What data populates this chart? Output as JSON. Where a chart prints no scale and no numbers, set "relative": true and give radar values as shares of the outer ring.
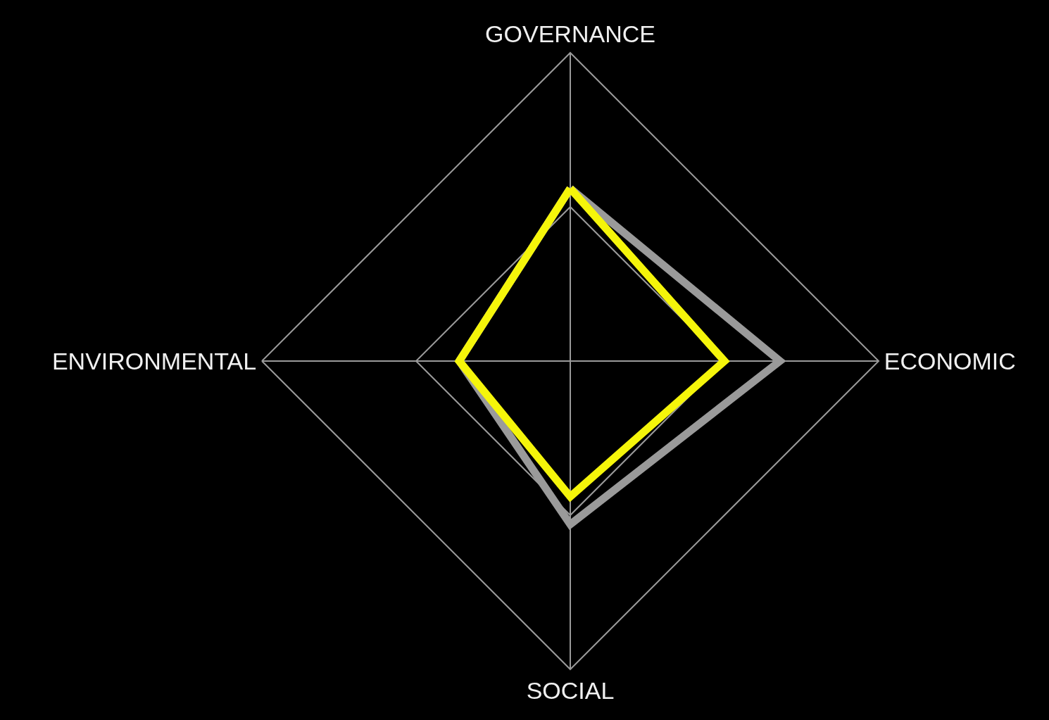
{
  "chart_data": {
    "type": "radar",
    "relative": true,
    "grid": true,
    "marker": "none",
    "line_style": "solid",
    "categories": [
      "GOVERNANCE",
      "ECONOMIC",
      "SOCIAL",
      "ENVIRONMENTAL"
    ],
    "series": [
      {
        "color": "#9a9a9a",
        "values": [
          0.56,
          0.68,
          0.53,
          0.36
        ]
      },
      {
        "color": "#f5f50a",
        "values": [
          0.56,
          0.5,
          0.44,
          0.36
        ]
      }
    ]
  }
}
